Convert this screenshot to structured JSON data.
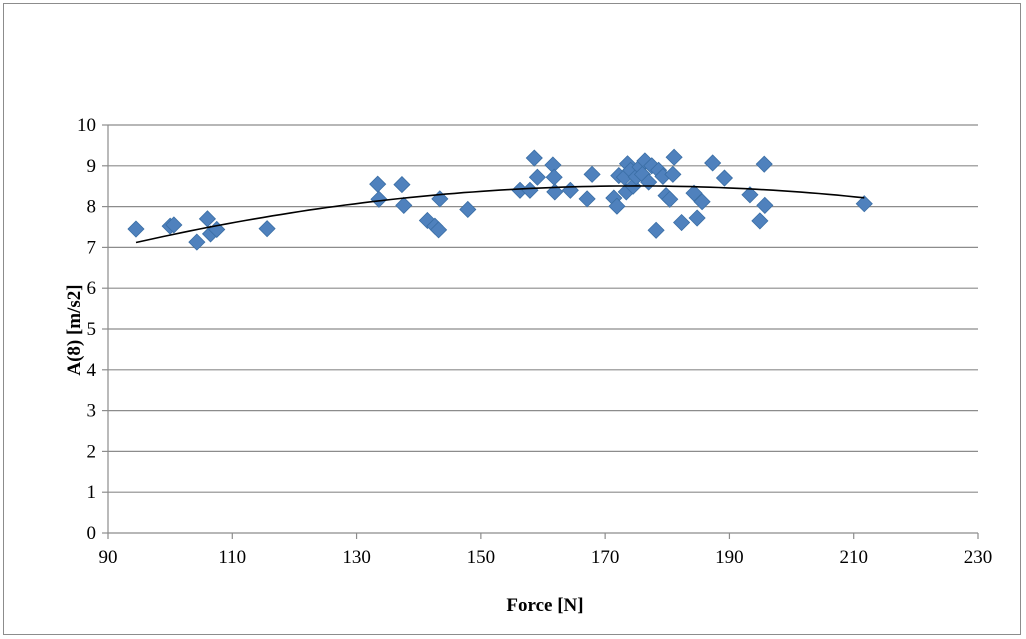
{
  "chart_data": {
    "type": "scatter",
    "title": "",
    "xlabel": "Force [N]",
    "ylabel": "A(8) [m/s2]",
    "xlim": [
      90,
      230
    ],
    "ylim": [
      0,
      10
    ],
    "x_ticks": [
      90,
      110,
      130,
      150,
      170,
      190,
      210,
      230
    ],
    "y_ticks": [
      0,
      1,
      2,
      3,
      4,
      5,
      6,
      7,
      8,
      9,
      10
    ],
    "grid": "horizontal",
    "marker": "diamond",
    "marker_color": "#4f81bd",
    "trendline": {
      "type": "polynomial",
      "order": 2,
      "color": "#000000"
    },
    "points": [
      {
        "x": 94.5,
        "y": 7.45
      },
      {
        "x": 100.0,
        "y": 7.52
      },
      {
        "x": 100.6,
        "y": 7.55
      },
      {
        "x": 104.3,
        "y": 7.13
      },
      {
        "x": 106.0,
        "y": 7.7
      },
      {
        "x": 106.5,
        "y": 7.33
      },
      {
        "x": 107.5,
        "y": 7.44
      },
      {
        "x": 115.6,
        "y": 7.46
      },
      {
        "x": 133.4,
        "y": 8.55
      },
      {
        "x": 133.6,
        "y": 8.18
      },
      {
        "x": 137.3,
        "y": 8.54
      },
      {
        "x": 137.6,
        "y": 8.03
      },
      {
        "x": 141.4,
        "y": 7.66
      },
      {
        "x": 142.6,
        "y": 7.52
      },
      {
        "x": 143.2,
        "y": 7.43
      },
      {
        "x": 143.4,
        "y": 8.19
      },
      {
        "x": 147.9,
        "y": 7.93
      },
      {
        "x": 156.3,
        "y": 8.4
      },
      {
        "x": 157.9,
        "y": 8.4
      },
      {
        "x": 158.6,
        "y": 9.19
      },
      {
        "x": 159.1,
        "y": 8.72
      },
      {
        "x": 161.6,
        "y": 9.02
      },
      {
        "x": 161.8,
        "y": 8.72
      },
      {
        "x": 161.9,
        "y": 8.36
      },
      {
        "x": 164.4,
        "y": 8.4
      },
      {
        "x": 167.1,
        "y": 8.19
      },
      {
        "x": 167.9,
        "y": 8.79
      },
      {
        "x": 171.4,
        "y": 8.21
      },
      {
        "x": 171.9,
        "y": 8.01
      },
      {
        "x": 172.2,
        "y": 8.76
      },
      {
        "x": 173.1,
        "y": 8.72
      },
      {
        "x": 173.4,
        "y": 8.36
      },
      {
        "x": 173.6,
        "y": 9.05
      },
      {
        "x": 174.1,
        "y": 8.89
      },
      {
        "x": 174.5,
        "y": 8.5
      },
      {
        "x": 175.0,
        "y": 8.73
      },
      {
        "x": 175.6,
        "y": 8.97
      },
      {
        "x": 176.0,
        "y": 8.79
      },
      {
        "x": 176.4,
        "y": 9.12
      },
      {
        "x": 177.0,
        "y": 8.6
      },
      {
        "x": 177.5,
        "y": 9.0
      },
      {
        "x": 178.2,
        "y": 7.42
      },
      {
        "x": 178.6,
        "y": 8.89
      },
      {
        "x": 179.3,
        "y": 8.74
      },
      {
        "x": 179.8,
        "y": 8.27
      },
      {
        "x": 180.4,
        "y": 8.18
      },
      {
        "x": 180.9,
        "y": 8.79
      },
      {
        "x": 181.1,
        "y": 9.21
      },
      {
        "x": 182.3,
        "y": 7.61
      },
      {
        "x": 184.3,
        "y": 8.33
      },
      {
        "x": 184.8,
        "y": 7.72
      },
      {
        "x": 185.6,
        "y": 8.12
      },
      {
        "x": 187.3,
        "y": 9.07
      },
      {
        "x": 189.2,
        "y": 8.7
      },
      {
        "x": 193.3,
        "y": 8.29
      },
      {
        "x": 194.9,
        "y": 7.65
      },
      {
        "x": 195.6,
        "y": 9.04
      },
      {
        "x": 195.7,
        "y": 8.03
      },
      {
        "x": 211.7,
        "y": 8.07
      }
    ]
  }
}
